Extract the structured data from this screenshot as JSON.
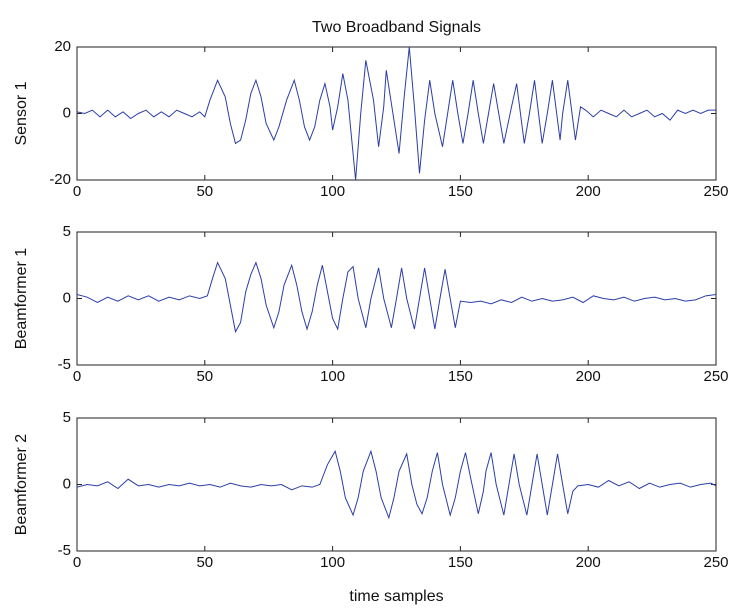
{
  "chart_data": [
    {
      "type": "line",
      "title": "Two Broadband Signals",
      "ylabel": "Sensor 1",
      "xlim": [
        0,
        250
      ],
      "xticks": [
        0,
        50,
        100,
        150,
        200,
        250
      ],
      "ylim": [
        -20,
        20
      ],
      "yticks": [
        -20,
        0,
        20
      ],
      "x": [
        0,
        3,
        6,
        9,
        12,
        15,
        18,
        21,
        24,
        27,
        30,
        33,
        36,
        39,
        42,
        45,
        48,
        50,
        52,
        55,
        58,
        60,
        62,
        64,
        66,
        68,
        70,
        72,
        74,
        77,
        79,
        82,
        85,
        87,
        89,
        91,
        93,
        95,
        97,
        99,
        100,
        102,
        104,
        106,
        109,
        111,
        113,
        116,
        118,
        120,
        121,
        123,
        126,
        128,
        130,
        132,
        134,
        136,
        138,
        140,
        143,
        145,
        147,
        149,
        151,
        153,
        155,
        157,
        159,
        161,
        163,
        165,
        167,
        170,
        172,
        175,
        177,
        179,
        182,
        184,
        186,
        189,
        190,
        192,
        195,
        197,
        199,
        202,
        205,
        208,
        211,
        214,
        217,
        220,
        223,
        226,
        229,
        232,
        235,
        238,
        241,
        244,
        247,
        250
      ],
      "series": [
        {
          "color": "#2b3ea6",
          "values": [
            0.5,
            0,
            1,
            -1,
            1,
            -1,
            0.5,
            -1.5,
            0,
            1,
            -1,
            0.5,
            -1,
            1,
            0,
            -1,
            0.5,
            -1,
            4,
            10,
            5,
            -3,
            -9,
            -8,
            -2,
            6,
            10,
            5,
            -3,
            -8,
            -4,
            4,
            10,
            4,
            -4,
            -8,
            -4,
            4,
            9,
            2,
            -5,
            2,
            12,
            4,
            -20,
            0,
            16,
            4,
            -10,
            2,
            13,
            3,
            -12,
            5,
            20,
            2,
            -18,
            -2,
            10,
            0,
            -10,
            0,
            10,
            0,
            -9,
            0,
            10,
            0,
            -9,
            0,
            9,
            0,
            -9,
            2,
            9,
            -9,
            0,
            10,
            -9,
            0,
            10,
            -8,
            0,
            10,
            -8,
            2,
            1,
            -1,
            1,
            0,
            -1,
            1,
            -1,
            0,
            1,
            -1,
            0,
            -2,
            1,
            0,
            1,
            0,
            1,
            1
          ]
        }
      ]
    },
    {
      "type": "line",
      "ylabel": "Beamformer 1",
      "xlim": [
        0,
        250
      ],
      "xticks": [
        0,
        50,
        100,
        150,
        200,
        250
      ],
      "ylim": [
        -5,
        5
      ],
      "yticks": [
        -5,
        0,
        5
      ],
      "x": [
        0,
        4,
        8,
        12,
        16,
        20,
        24,
        28,
        32,
        36,
        40,
        44,
        48,
        51,
        53,
        55,
        58,
        60,
        62,
        64,
        66,
        68,
        70,
        72,
        74,
        77,
        79,
        81,
        84,
        86,
        88,
        90,
        92,
        94,
        96,
        98,
        100,
        102,
        104,
        106,
        108,
        110,
        113,
        115,
        118,
        120,
        123,
        125,
        127,
        129,
        132,
        134,
        136,
        138,
        140,
        142,
        144,
        146,
        148,
        150,
        154,
        158,
        162,
        166,
        170,
        174,
        178,
        182,
        186,
        190,
        194,
        198,
        202,
        206,
        210,
        214,
        218,
        222,
        226,
        230,
        234,
        238,
        242,
        246,
        250
      ],
      "series": [
        {
          "color": "#2b3ea6",
          "values": [
            0.3,
            0.1,
            -0.3,
            0.1,
            -0.2,
            0.2,
            -0.1,
            0.2,
            -0.2,
            0.1,
            -0.1,
            0.2,
            0,
            0.2,
            1.5,
            2.7,
            1.5,
            -0.5,
            -2.5,
            -1.8,
            0.5,
            1.8,
            2.7,
            1.5,
            -0.5,
            -2.2,
            -1,
            1,
            2.5,
            1,
            -1,
            -2.3,
            -1,
            1,
            2.5,
            0.5,
            -1.5,
            -2.3,
            0,
            2,
            2.4,
            0,
            -2.2,
            0,
            2.3,
            0,
            -2.2,
            0,
            2.3,
            0,
            -2.3,
            0,
            2.3,
            0,
            -2.3,
            0,
            2.2,
            0,
            -2.2,
            -0.2,
            -0.3,
            -0.2,
            -0.4,
            -0.1,
            -0.3,
            0.1,
            -0.2,
            0,
            -0.2,
            -0.1,
            0.1,
            -0.3,
            0.2,
            0,
            -0.1,
            0.1,
            -0.2,
            0,
            0.1,
            -0.1,
            0,
            -0.2,
            -0.1,
            0.2,
            0.3
          ]
        }
      ]
    },
    {
      "type": "line",
      "ylabel": "Beamformer 2",
      "xlabel": "time samples",
      "xlim": [
        0,
        250
      ],
      "xticks": [
        0,
        50,
        100,
        150,
        200,
        250
      ],
      "ylim": [
        -5,
        5
      ],
      "yticks": [
        -5,
        0,
        5
      ],
      "x": [
        0,
        4,
        8,
        12,
        16,
        20,
        24,
        28,
        32,
        36,
        40,
        44,
        48,
        52,
        56,
        60,
        64,
        68,
        72,
        76,
        80,
        84,
        88,
        92,
        95,
        98,
        101,
        103,
        105,
        108,
        110,
        112,
        115,
        117,
        119,
        122,
        124,
        126,
        129,
        131,
        133,
        135,
        137,
        139,
        141,
        143,
        146,
        148,
        150,
        152,
        154,
        157,
        159,
        160,
        162,
        164,
        167,
        169,
        171,
        173,
        176,
        178,
        180,
        182,
        184,
        186,
        188,
        190,
        192,
        194,
        196,
        200,
        204,
        208,
        212,
        216,
        220,
        224,
        228,
        232,
        236,
        240,
        244,
        248,
        250
      ],
      "series": [
        {
          "color": "#2b3ea6",
          "values": [
            -0.2,
            0,
            -0.1,
            0.2,
            -0.3,
            0.4,
            -0.1,
            0,
            -0.2,
            0,
            -0.1,
            0.1,
            -0.1,
            0,
            -0.2,
            0.1,
            -0.1,
            -0.2,
            0,
            -0.1,
            0,
            -0.4,
            -0.1,
            -0.2,
            0,
            1.5,
            2.5,
            1,
            -1,
            -2.3,
            -1,
            1,
            2.5,
            1,
            -1,
            -2.5,
            -1,
            1,
            2.3,
            0,
            -1.5,
            -2.2,
            -1,
            1,
            2.4,
            0,
            -2.3,
            -1,
            1,
            2.4,
            0.5,
            -2.2,
            -0.5,
            1,
            2.4,
            0,
            -2.3,
            0,
            2.3,
            0,
            -2.3,
            0,
            2.3,
            0,
            -2.3,
            0,
            2.3,
            0,
            -2.2,
            -0.5,
            -0.1,
            0,
            -0.2,
            0.3,
            -0.1,
            0.2,
            -0.3,
            0.1,
            -0.2,
            0,
            0.1,
            -0.2,
            0,
            0.1,
            -0.1
          ]
        }
      ]
    }
  ]
}
